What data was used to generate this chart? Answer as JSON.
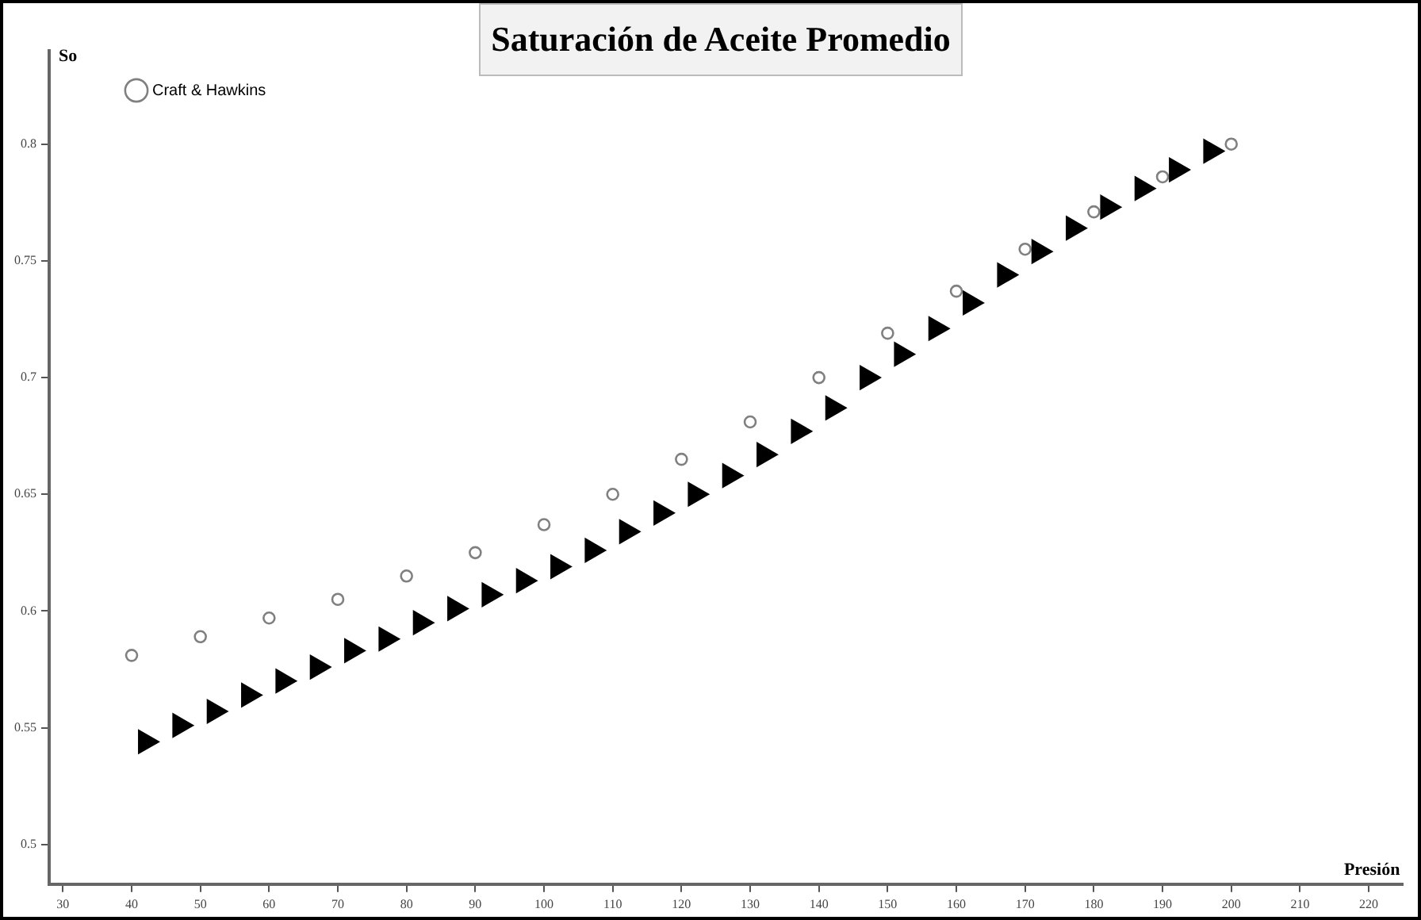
{
  "chart_data": {
    "type": "scatter",
    "title": "Saturación de Aceite Promedio",
    "xlabel": "Presión",
    "ylabel": "So",
    "xlim": [
      28,
      225
    ],
    "xticks": [
      30,
      40,
      50,
      60,
      70,
      80,
      90,
      100,
      110,
      120,
      130,
      140,
      150,
      160,
      170,
      180,
      190,
      200,
      210,
      220
    ],
    "ylim": [
      0.483,
      0.84
    ],
    "yticks": [
      0.5,
      0.55,
      0.6,
      0.65,
      0.7,
      0.75,
      0.8
    ],
    "grid": false,
    "legend": "top left",
    "series": [
      {
        "marker": "triangle",
        "color": "#000000",
        "x": [
          42,
          47,
          52,
          57,
          62,
          67,
          72,
          77,
          82,
          87,
          92,
          97,
          102,
          107,
          112,
          117,
          122,
          127,
          132,
          137,
          142,
          147,
          152,
          157,
          162,
          167,
          172,
          177,
          182,
          187,
          192,
          197
        ],
        "values": [
          0.544,
          0.551,
          0.557,
          0.564,
          0.57,
          0.576,
          0.583,
          0.588,
          0.595,
          0.601,
          0.607,
          0.613,
          0.619,
          0.626,
          0.634,
          0.642,
          0.65,
          0.658,
          0.667,
          0.677,
          0.687,
          0.7,
          0.71,
          0.721,
          0.732,
          0.744,
          0.754,
          0.764,
          0.773,
          0.781,
          0.789,
          0.797
        ]
      },
      {
        "name": "Craft & Hawkins",
        "marker": "circle",
        "color": "#808080",
        "x": [
          40,
          50,
          60,
          70,
          80,
          90,
          100,
          110,
          120,
          130,
          140,
          150,
          160,
          170,
          180,
          190,
          200
        ],
        "values": [
          0.581,
          0.589,
          0.597,
          0.605,
          0.615,
          0.625,
          0.637,
          0.65,
          0.665,
          0.681,
          0.7,
          0.719,
          0.737,
          0.755,
          0.771,
          0.786,
          0.8
        ]
      }
    ]
  }
}
